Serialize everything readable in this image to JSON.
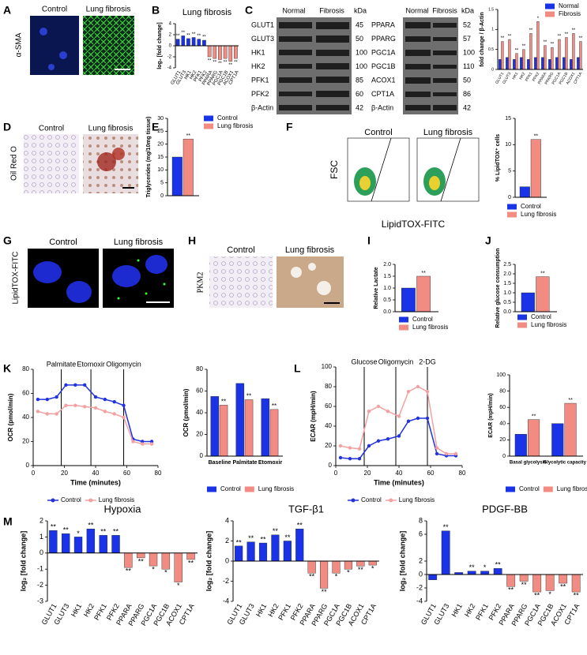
{
  "panel_letters": [
    "A",
    "B",
    "C",
    "D",
    "E",
    "F",
    "G",
    "H",
    "I",
    "J",
    "K",
    "L",
    "M"
  ],
  "image_panels": {
    "A": {
      "labels": [
        "Control",
        "Lung fibrosis"
      ],
      "stain": "α-SMA"
    },
    "D": {
      "labels": [
        "Control",
        "Lung fibrosis"
      ],
      "stain": "Oil Red O"
    },
    "G": {
      "labels": [
        "Control",
        "Lung fibrosis"
      ],
      "stain": "LipidTOX-FITC"
    },
    "H": {
      "labels": [
        "Control",
        "Lung fibrosis"
      ],
      "stain": "PKM2"
    },
    "F": {
      "labels": [
        "Control",
        "Lung fibrosis"
      ],
      "y_label": "FSC",
      "x_label": "LipidTOX-FITC"
    }
  },
  "western_blot": {
    "headers": [
      "Normal",
      "Fibrosis",
      "kDa"
    ],
    "left": [
      [
        "GLUT1",
        "45"
      ],
      [
        "GLUT3",
        "50"
      ],
      [
        "HK1",
        "100"
      ],
      [
        "HK2",
        "100"
      ],
      [
        "PFK1",
        "85"
      ],
      [
        "PFK2",
        "60"
      ],
      [
        "β-Actin",
        "42"
      ]
    ],
    "right": [
      [
        "PPARA",
        "52"
      ],
      [
        "PPARG",
        "57"
      ],
      [
        "PGC1A",
        "100"
      ],
      [
        "PGC1B",
        "110"
      ],
      [
        "ACOX1",
        "50"
      ],
      [
        "CPT1A",
        "86"
      ],
      [
        "β-Actin",
        "42"
      ]
    ]
  },
  "chart_data": [
    {
      "type": "bar",
      "title": "Lung fibrosis",
      "ylabel": "log₂ [fold change]",
      "categories": [
        "GLUT1",
        "GLUT3",
        "HK1",
        "HK2",
        "PFK1",
        "PFK2",
        "PPARA",
        "PPARG",
        "PGC1A",
        "PGC1B",
        "ACOX1",
        "CPT1A"
      ],
      "series": [
        {
          "colors": [
            "#1a33e6",
            "#1a33e6",
            "#1a33e6",
            "#1a33e6",
            "#1a33e6",
            "#1a33e6",
            "#f28b82",
            "#f28b82",
            "#f28b82",
            "#f28b82",
            "#f28b82",
            "#f28b82"
          ],
          "values": [
            1.2,
            1.8,
            1.3,
            1.5,
            1.2,
            1.0,
            -2.0,
            -2.3,
            -2.5,
            -2.3,
            -2.8,
            -2.3
          ],
          "significance": [
            "**",
            "**",
            "**",
            "**",
            "**",
            "**",
            "**",
            "**",
            "**",
            "**",
            "**",
            "**"
          ]
        }
      ],
      "ylim": [
        -4,
        4
      ],
      "yticks": [
        -4,
        -2,
        0,
        2,
        4
      ]
    },
    {
      "type": "bar",
      "ylabel": "fold change / β-Actin",
      "categories": [
        "GLUT1",
        "GLUT3",
        "HK1",
        "HK2",
        "PFK1",
        "PFK2",
        "PPARA",
        "PPARG",
        "PGC1A",
        "PGC1B",
        "ACOX1",
        "CPT1A"
      ],
      "series": [
        {
          "name": "Normal",
          "color": "#1a33e6",
          "values": [
            0.25,
            0.3,
            0.25,
            0.3,
            0.25,
            0.3,
            0.3,
            0.25,
            0.3,
            0.3,
            0.25,
            0.3
          ]
        },
        {
          "name": "Fibrosis",
          "color": "#f28b82",
          "values": [
            0.7,
            0.75,
            0.4,
            0.5,
            0.9,
            1.2,
            0.6,
            0.55,
            0.75,
            0.8,
            0.9,
            0.7
          ],
          "significance": [
            "**",
            "**",
            "**",
            "**",
            "**",
            "*",
            "**",
            "**",
            "**",
            "**",
            "**",
            "**"
          ]
        }
      ],
      "ylim": [
        0,
        1.5
      ],
      "yticks": [
        0,
        0.5,
        1,
        1.5
      ]
    },
    {
      "type": "bar",
      "ylabel": "Triglycerides (mg/10mg tissue)",
      "series": [
        {
          "name": "Control",
          "color": "#1a33e6",
          "values": [
            15
          ]
        },
        {
          "name": "Lung fibrosis",
          "color": "#f28b82",
          "values": [
            22
          ],
          "significance": [
            "**"
          ]
        }
      ],
      "ylim": [
        0,
        30
      ],
      "yticks": [
        0,
        5,
        10,
        15,
        20,
        25,
        30
      ]
    },
    {
      "type": "bar",
      "ylabel": "% LipidTOX⁺ cells",
      "series": [
        {
          "name": "Control",
          "color": "#1a33e6",
          "values": [
            2
          ]
        },
        {
          "name": "Lung fibrosis",
          "color": "#f28b82",
          "values": [
            11
          ],
          "significance": [
            "**"
          ]
        }
      ],
      "ylim": [
        0,
        15
      ],
      "yticks": [
        0,
        5,
        10,
        15
      ]
    },
    {
      "type": "bar",
      "ylabel": "Relative Lactate",
      "series": [
        {
          "name": "Control",
          "color": "#1a33e6",
          "values": [
            1.0
          ]
        },
        {
          "name": "Lung fibrosis",
          "color": "#f28b82",
          "values": [
            1.5
          ],
          "significance": [
            "**"
          ]
        }
      ],
      "ylim": [
        0,
        2
      ],
      "yticks": [
        {
          "value": 0,
          "label": "0.0"
        },
        {
          "value": 0.5,
          "label": "0.5"
        },
        {
          "value": 1,
          "label": "1.0"
        },
        {
          "value": 1.5,
          "label": "1.5"
        },
        {
          "value": 2,
          "label": "2.0"
        }
      ]
    },
    {
      "type": "bar",
      "ylabel": "Relative glucose consumption",
      "series": [
        {
          "name": "Control",
          "color": "#1a33e6",
          "values": [
            1.0
          ]
        },
        {
          "name": "Lung fibrosis",
          "color": "#f28b82",
          "values": [
            1.85
          ],
          "significance": [
            "**"
          ]
        }
      ],
      "ylim": [
        0,
        2.5
      ],
      "yticks": [
        {
          "value": 0,
          "label": "0.0"
        },
        {
          "value": 0.5,
          "label": "0.5"
        },
        {
          "value": 1,
          "label": "1.0"
        },
        {
          "value": 1.5,
          "label": "1.5"
        },
        {
          "value": 2,
          "label": "2.0"
        },
        {
          "value": 2.5,
          "label": "2.5"
        }
      ]
    },
    {
      "type": "line",
      "xlabel": "Time (minutes)",
      "ylabel": "OCR (pmol/min)",
      "x": [
        3,
        9,
        15,
        21,
        27,
        33,
        40,
        46,
        52,
        58,
        64,
        70,
        76
      ],
      "series": [
        {
          "name": "Control",
          "color": "#2233dd",
          "values": [
            55,
            55,
            57,
            67,
            67,
            67,
            57,
            55,
            53,
            50,
            22,
            20,
            20
          ]
        },
        {
          "name": "Lung fibrosis",
          "color": "#f4a0a0",
          "values": [
            45,
            43,
            43,
            50,
            50,
            49,
            48,
            45,
            43,
            40,
            20,
            18,
            18
          ]
        }
      ],
      "injections": [
        {
          "label": "Palmitate",
          "x": 18
        },
        {
          "label": "Etomoxir",
          "x": 37
        },
        {
          "label": "Oligomycin",
          "x": 58
        }
      ],
      "xlim": [
        0,
        80
      ],
      "xticks": [
        0,
        20,
        40,
        60,
        80
      ],
      "ylim": [
        0,
        80
      ],
      "yticks": [
        0,
        20,
        40,
        60,
        80
      ]
    },
    {
      "type": "bar",
      "ylabel": "OCR (pmol/min)",
      "categories": [
        "Baseline",
        "Palmitate",
        "Etomoxir"
      ],
      "series": [
        {
          "name": "Control",
          "color": "#1a33e6",
          "values": [
            55,
            67,
            53
          ]
        },
        {
          "name": "Lung fibrosis",
          "color": "#f28b82",
          "values": [
            47,
            52,
            43
          ],
          "significance": [
            "**",
            "**",
            "**"
          ]
        }
      ],
      "ylim": [
        0,
        80
      ],
      "yticks": [
        0,
        20,
        40,
        60,
        80
      ]
    },
    {
      "type": "line",
      "xlabel": "Time (minutes)",
      "ylabel": "ECAR (mpH/min)",
      "x": [
        3,
        9,
        15,
        21,
        27,
        33,
        40,
        46,
        52,
        58,
        64,
        70,
        76
      ],
      "series": [
        {
          "name": "Control",
          "color": "#2233dd",
          "values": [
            8,
            7,
            7,
            20,
            25,
            27,
            30,
            45,
            48,
            48,
            12,
            10,
            10
          ]
        },
        {
          "name": "Lung fibrosis",
          "color": "#f4a0a0",
          "values": [
            20,
            18,
            17,
            55,
            60,
            55,
            50,
            75,
            80,
            75,
            18,
            12,
            12
          ]
        }
      ],
      "injections": [
        {
          "label": "Glucose",
          "x": 18
        },
        {
          "label": "Oligomycin",
          "x": 38
        },
        {
          "label": "2-DG",
          "x": 58
        }
      ],
      "xlim": [
        0,
        80
      ],
      "xticks": [
        0,
        20,
        40,
        60,
        80
      ],
      "ylim": [
        0,
        100
      ],
      "yticks": [
        0,
        20,
        40,
        60,
        80,
        100
      ]
    },
    {
      "type": "bar",
      "ylabel": "ECAR (mpH/min)",
      "categories": [
        "Basal glycolysis",
        "Glycolytic capacity"
      ],
      "series": [
        {
          "name": "Control",
          "color": "#1a33e6",
          "values": [
            27,
            40
          ]
        },
        {
          "name": "Lung fibrosis",
          "color": "#f28b82",
          "values": [
            45,
            65
          ],
          "significance": [
            "**",
            "**"
          ]
        }
      ],
      "ylim": [
        0,
        100
      ],
      "yticks": [
        0,
        20,
        40,
        60,
        80,
        100
      ]
    },
    {
      "type": "bar",
      "title": "Hypoxia",
      "ylabel": "log₂ [fold change]",
      "categories": [
        "GLUT1",
        "GLUT3",
        "HK1",
        "HK2",
        "PFK1",
        "PFK2",
        "PPARA",
        "PPARG",
        "PGC1A",
        "PGC1B",
        "ACOX1",
        "CPT1A"
      ],
      "series": [
        {
          "colors": [
            "#1a33e6",
            "#1a33e6",
            "#1a33e6",
            "#1a33e6",
            "#1a33e6",
            "#1a33e6",
            "#f28b82",
            "#f28b82",
            "#f28b82",
            "#f28b82",
            "#f28b82",
            "#f28b82"
          ],
          "values": [
            1.4,
            1.2,
            1.0,
            1.5,
            1.1,
            1.1,
            -0.9,
            -0.3,
            -0.8,
            -1.0,
            -1.8,
            -0.4
          ],
          "significance": [
            "**",
            "**",
            "*",
            "**",
            "**",
            "**",
            "**",
            "**",
            "*",
            "*",
            "*",
            "**"
          ]
        }
      ],
      "ylim": [
        -3,
        2
      ],
      "yticks": [
        -3,
        -2,
        -1,
        0,
        1,
        2
      ]
    },
    {
      "type": "bar",
      "title": "TGF-β1",
      "ylabel": "log₂ [fold change]",
      "categories": [
        "GLUT1",
        "GLUT3",
        "HK1",
        "HK2",
        "PFK1",
        "PFK2",
        "PPARA",
        "PPARG",
        "PGC1A",
        "PGC1B",
        "ACOX1",
        "CPT1A"
      ],
      "series": [
        {
          "colors": [
            "#1a33e6",
            "#1a33e6",
            "#1a33e6",
            "#1a33e6",
            "#1a33e6",
            "#1a33e6",
            "#f28b82",
            "#f28b82",
            "#f28b82",
            "#f28b82",
            "#f28b82",
            "#f28b82"
          ],
          "values": [
            1.5,
            1.9,
            1.8,
            2.6,
            2.0,
            3.2,
            -1.2,
            -2.7,
            -1.2,
            -0.8,
            -0.5,
            -0.4
          ],
          "significance": [
            "**",
            "**",
            "**",
            "**",
            "**",
            "**",
            "**",
            "**",
            "*",
            "*",
            "**",
            "*"
          ]
        }
      ],
      "ylim": [
        -4,
        4
      ],
      "yticks": [
        -4,
        -2,
        0,
        2,
        4
      ]
    },
    {
      "type": "bar",
      "title": "PDGF-BB",
      "ylabel": "log₂ [fold change]",
      "categories": [
        "GLUT1",
        "GLUT3",
        "HK1",
        "HK2",
        "PFK1",
        "PFK2",
        "PPARA",
        "PPARG",
        "PGC1A",
        "PGC1B",
        "ACOX1",
        "CPT1A"
      ],
      "series": [
        {
          "colors": [
            "#1a33e6",
            "#1a33e6",
            "#1a33e6",
            "#1a33e6",
            "#1a33e6",
            "#1a33e6",
            "#f28b82",
            "#f28b82",
            "#f28b82",
            "#f28b82",
            "#f28b82",
            "#f28b82"
          ],
          "values": [
            -0.8,
            6.5,
            0.3,
            0.5,
            0.5,
            0.9,
            -1.8,
            -1.0,
            -2.6,
            -2.4,
            -1.3,
            -2.6
          ],
          "significance": [
            null,
            "**",
            null,
            "**",
            "*",
            "**",
            "**",
            "**",
            "**",
            "*",
            "**",
            "**"
          ]
        }
      ],
      "ylim": [
        -4,
        8
      ],
      "yticks": [
        -4,
        -2,
        0,
        2,
        6,
        8
      ]
    }
  ]
}
